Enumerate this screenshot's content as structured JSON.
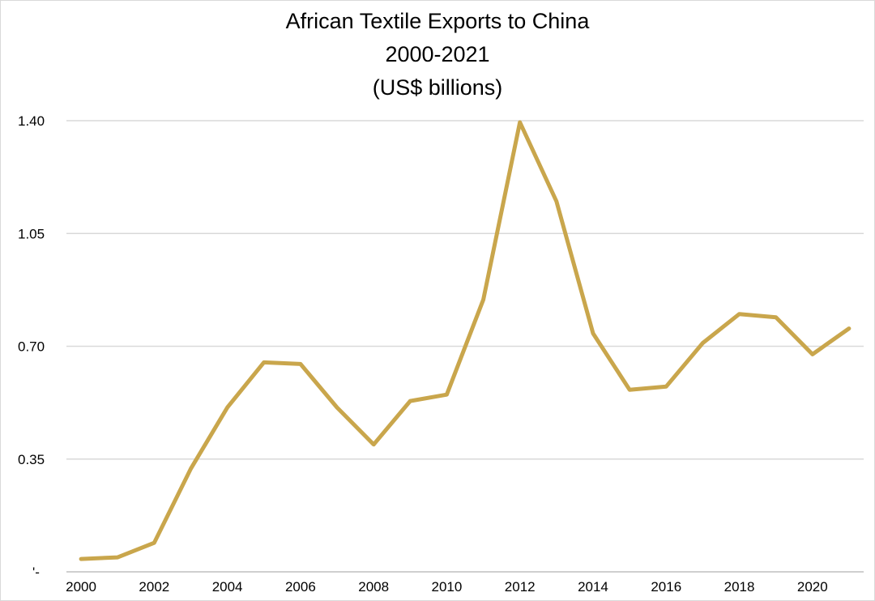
{
  "chart_data": {
    "type": "line",
    "title_lines": [
      "African Textile Exports to China",
      "2000-2021",
      "(US$ billions)"
    ],
    "xlabel": "",
    "ylabel": "",
    "x": [
      2000,
      2001,
      2002,
      2003,
      2004,
      2005,
      2006,
      2007,
      2008,
      2009,
      2010,
      2011,
      2012,
      2013,
      2014,
      2015,
      2016,
      2017,
      2018,
      2019,
      2020,
      2021
    ],
    "x_tick_labels": [
      "2000",
      "2002",
      "2004",
      "2006",
      "2008",
      "2010",
      "2012",
      "2014",
      "2016",
      "2018",
      "2020"
    ],
    "x_tick_values": [
      2000,
      2002,
      2004,
      2006,
      2008,
      2010,
      2012,
      2014,
      2016,
      2018,
      2020
    ],
    "y_tick_values": [
      0,
      0.35,
      0.7,
      1.05,
      1.4
    ],
    "y_tick_labels": [
      "'-",
      "0.35",
      "0.70",
      "1.05",
      "1.40"
    ],
    "ylim": [
      0,
      1.4
    ],
    "xlim": [
      1999.6,
      2021.4
    ],
    "grid": true,
    "legend": "none",
    "series": [
      {
        "color": "#c9a64c",
        "values": [
          0.04,
          0.045,
          0.09,
          0.32,
          0.51,
          0.65,
          0.645,
          0.51,
          0.395,
          0.53,
          0.55,
          0.845,
          1.395,
          1.15,
          0.74,
          0.565,
          0.575,
          0.71,
          0.8,
          0.79,
          0.675,
          0.755
        ]
      }
    ]
  }
}
